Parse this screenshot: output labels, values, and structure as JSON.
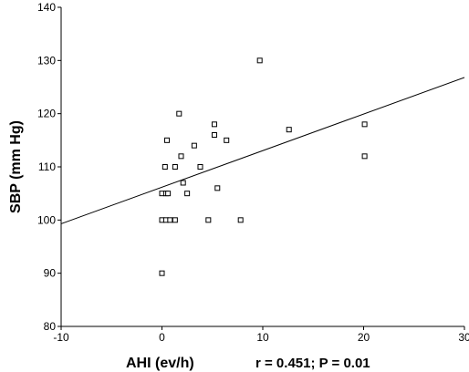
{
  "chart_data": {
    "type": "scatter",
    "title": "",
    "xlabel": "AHI (ev/h)",
    "ylabel": "SBP (mm Hg)",
    "annotation": "r = 0.451; P = 0.01",
    "xlim": [
      -10,
      30
    ],
    "ylim": [
      80,
      140
    ],
    "xticks": [
      -10,
      0,
      10,
      20,
      30
    ],
    "yticks": [
      80,
      90,
      100,
      110,
      120,
      130,
      140
    ],
    "grid": false,
    "marker": "open-square",
    "points": [
      {
        "x": 0,
        "y": 90
      },
      {
        "x": 0,
        "y": 100
      },
      {
        "x": 0.4,
        "y": 100
      },
      {
        "x": 0.8,
        "y": 100
      },
      {
        "x": 1.3,
        "y": 100
      },
      {
        "x": 4.6,
        "y": 100
      },
      {
        "x": 7.8,
        "y": 100
      },
      {
        "x": 0,
        "y": 105
      },
      {
        "x": 0.4,
        "y": 105
      },
      {
        "x": 0.6,
        "y": 105
      },
      {
        "x": 2.5,
        "y": 105
      },
      {
        "x": 5.5,
        "y": 106
      },
      {
        "x": 2.1,
        "y": 107
      },
      {
        "x": 0.3,
        "y": 110
      },
      {
        "x": 1.3,
        "y": 110
      },
      {
        "x": 3.8,
        "y": 110
      },
      {
        "x": 1.9,
        "y": 112
      },
      {
        "x": 20.1,
        "y": 112
      },
      {
        "x": 3.2,
        "y": 114
      },
      {
        "x": 0.5,
        "y": 115
      },
      {
        "x": 6.4,
        "y": 115
      },
      {
        "x": 5.2,
        "y": 116
      },
      {
        "x": 12.6,
        "y": 117
      },
      {
        "x": 5.2,
        "y": 118
      },
      {
        "x": 20.1,
        "y": 118
      },
      {
        "x": 1.7,
        "y": 120
      },
      {
        "x": 9.7,
        "y": 130
      }
    ],
    "regression_line": {
      "x": [
        -10,
        30
      ],
      "y": [
        99.3,
        126.8
      ]
    }
  },
  "colors": {
    "axis": "#000000",
    "marker_stroke": "#000000",
    "marker_fill": "#ffffff",
    "line": "#000000"
  }
}
